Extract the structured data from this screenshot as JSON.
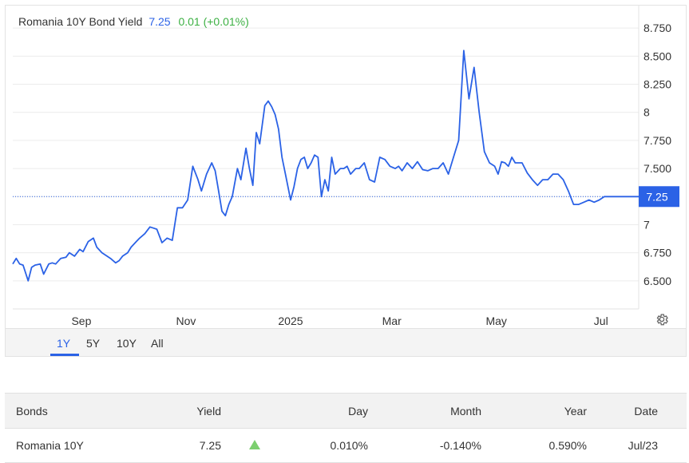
{
  "legend": {
    "name": "Romania 10Y Bond Yield",
    "last": "7.25",
    "change": "0.01 (+0.01%)"
  },
  "last_value_label": "7.25",
  "ranges": [
    {
      "label": "1Y",
      "active": true
    },
    {
      "label": "5Y",
      "active": false
    },
    {
      "label": "10Y",
      "active": false
    },
    {
      "label": "All",
      "active": false
    }
  ],
  "colors": {
    "line": "#2b62e6",
    "positive": "#3cb043",
    "accent": "#2b62e6"
  },
  "icons": {
    "settings": "gear-icon",
    "day_direction": "triangle-up-icon"
  },
  "table": {
    "headers": [
      "Bonds",
      "Yield",
      "",
      "Day",
      "Month",
      "Year",
      "Date"
    ],
    "row": {
      "bond": "Romania 10Y",
      "yield": "7.25",
      "day": "0.010%",
      "month": "-0.140%",
      "year": "0.590%",
      "date": "Jul/23"
    }
  },
  "chart_data": {
    "type": "line",
    "title": "Romania 10Y Bond Yield",
    "ylim": [
      6.25,
      8.95
    ],
    "y_ticks": [
      6.5,
      6.75,
      7,
      7.25,
      7.5,
      7.75,
      8,
      8.25,
      8.5,
      8.75
    ],
    "y_tick_labels": [
      "6.500",
      "6.750",
      "7",
      "",
      "7.500",
      "7.750",
      "8",
      "8.250",
      "8.500",
      "8.750"
    ],
    "x_tick_labels": [
      "Sep",
      "Nov",
      "2025",
      "Mar",
      "May",
      "Jul"
    ],
    "x_tick_dates": [
      "2024-09-01",
      "2024-11-01",
      "2025-01-01",
      "2025-03-01",
      "2025-05-01",
      "2025-07-01"
    ],
    "xlim": [
      "2024-07-23",
      "2025-07-23"
    ],
    "grid": "horizontal",
    "series": [
      {
        "x": [
          "2024-07-23",
          "2024-07-25",
          "2024-07-27",
          "2024-07-29",
          "2024-08-01",
          "2024-08-03",
          "2024-08-05",
          "2024-08-08",
          "2024-08-10",
          "2024-08-13",
          "2024-08-15",
          "2024-08-17",
          "2024-08-20",
          "2024-08-23",
          "2024-08-25",
          "2024-08-28",
          "2024-08-31",
          "2024-09-02",
          "2024-09-05",
          "2024-09-08",
          "2024-09-10",
          "2024-09-13",
          "2024-09-16",
          "2024-09-18",
          "2024-09-21",
          "2024-09-23",
          "2024-09-25",
          "2024-09-28",
          "2024-09-30",
          "2024-10-03",
          "2024-10-05",
          "2024-10-08",
          "2024-10-11",
          "2024-10-13",
          "2024-10-15",
          "2024-10-18",
          "2024-10-21",
          "2024-10-24",
          "2024-10-27",
          "2024-10-30",
          "2024-11-02",
          "2024-11-05",
          "2024-11-08",
          "2024-11-10",
          "2024-11-13",
          "2024-11-16",
          "2024-11-18",
          "2024-11-20",
          "2024-11-22",
          "2024-11-24",
          "2024-11-26",
          "2024-11-28",
          "2024-12-01",
          "2024-12-03",
          "2024-12-06",
          "2024-12-08",
          "2024-12-10",
          "2024-12-12",
          "2024-12-14",
          "2024-12-17",
          "2024-12-19",
          "2024-12-21",
          "2024-12-23",
          "2024-12-25",
          "2024-12-27",
          "2024-12-29",
          "2025-01-01",
          "2025-01-03",
          "2025-01-05",
          "2025-01-07",
          "2025-01-09",
          "2025-01-11",
          "2025-01-13",
          "2025-01-15",
          "2025-01-17",
          "2025-01-19",
          "2025-01-21",
          "2025-01-23",
          "2025-01-25",
          "2025-01-27",
          "2025-01-30",
          "2025-02-01",
          "2025-02-03",
          "2025-02-05",
          "2025-02-08",
          "2025-02-10",
          "2025-02-13",
          "2025-02-16",
          "2025-02-19",
          "2025-02-22",
          "2025-02-25",
          "2025-02-28",
          "2025-03-03",
          "2025-03-05",
          "2025-03-07",
          "2025-03-10",
          "2025-03-13",
          "2025-03-16",
          "2025-03-19",
          "2025-03-22",
          "2025-03-25",
          "2025-03-28",
          "2025-03-31",
          "2025-04-03",
          "2025-04-06",
          "2025-04-09",
          "2025-04-12",
          "2025-04-15",
          "2025-04-18",
          "2025-04-21",
          "2025-04-24",
          "2025-04-27",
          "2025-04-30",
          "2025-05-02",
          "2025-05-04",
          "2025-05-06",
          "2025-05-08",
          "2025-05-10",
          "2025-05-12",
          "2025-05-14",
          "2025-05-16",
          "2025-05-19",
          "2025-05-22",
          "2025-05-25",
          "2025-05-28",
          "2025-05-31",
          "2025-06-03",
          "2025-06-06",
          "2025-06-09",
          "2025-06-12",
          "2025-06-15",
          "2025-06-18",
          "2025-06-21",
          "2025-06-24",
          "2025-06-27",
          "2025-06-30",
          "2025-07-03",
          "2025-07-06",
          "2025-07-09",
          "2025-07-12",
          "2025-07-15",
          "2025-07-18",
          "2025-07-21",
          "2025-07-23"
        ],
        "values": [
          6.65,
          6.7,
          6.65,
          6.64,
          6.5,
          6.62,
          6.64,
          6.65,
          6.56,
          6.65,
          6.66,
          6.65,
          6.7,
          6.71,
          6.75,
          6.72,
          6.78,
          6.76,
          6.85,
          6.88,
          6.8,
          6.75,
          6.72,
          6.7,
          6.66,
          6.68,
          6.72,
          6.75,
          6.8,
          6.85,
          6.88,
          6.92,
          6.98,
          6.97,
          6.96,
          6.84,
          6.88,
          6.86,
          7.15,
          7.15,
          7.22,
          7.52,
          7.4,
          7.3,
          7.45,
          7.55,
          7.48,
          7.3,
          7.12,
          7.08,
          7.18,
          7.25,
          7.5,
          7.4,
          7.68,
          7.5,
          7.35,
          7.82,
          7.72,
          8.06,
          8.1,
          8.05,
          7.98,
          7.85,
          7.6,
          7.45,
          7.22,
          7.34,
          7.5,
          7.58,
          7.6,
          7.5,
          7.55,
          7.62,
          7.6,
          7.25,
          7.4,
          7.3,
          7.6,
          7.45,
          7.5,
          7.5,
          7.52,
          7.45,
          7.5,
          7.5,
          7.55,
          7.4,
          7.38,
          7.6,
          7.58,
          7.52,
          7.5,
          7.52,
          7.48,
          7.55,
          7.5,
          7.56,
          7.49,
          7.48,
          7.5,
          7.5,
          7.55,
          7.45,
          7.6,
          7.75,
          8.55,
          8.12,
          8.4,
          8.0,
          7.65,
          7.55,
          7.52,
          7.45,
          7.56,
          7.55,
          7.52,
          7.6,
          7.55,
          7.55,
          7.55,
          7.46,
          7.4,
          7.35,
          7.4,
          7.4,
          7.45,
          7.45,
          7.4,
          7.3,
          7.18,
          7.18,
          7.2,
          7.22,
          7.2,
          7.22,
          7.25,
          7.25,
          7.25,
          7.25,
          7.25,
          7.25,
          7.25,
          7.25
        ]
      }
    ]
  }
}
